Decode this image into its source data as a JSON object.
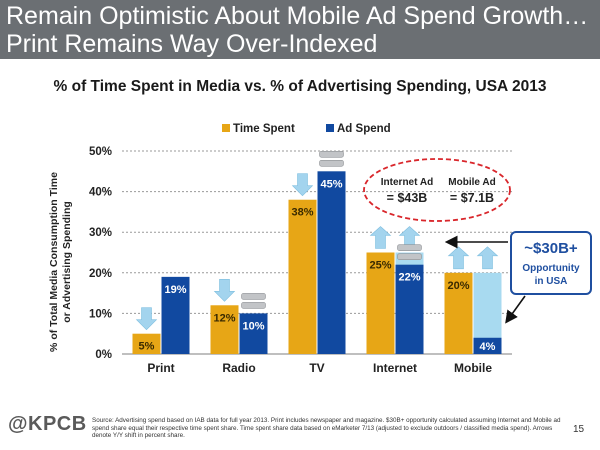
{
  "header": {
    "line1": "Remain Optimistic About Mobile Ad Spend Growth…",
    "line2": "Print Remains Way Over-Indexed"
  },
  "colors": {
    "header_bg": "#6b6f73",
    "time_spent": "#e7a616",
    "ad_spend": "#1149a0",
    "opportunity": "#a8daf0",
    "arrow": "#a3d4ee",
    "annotation_circle": "#d9262b",
    "callout_border": "#1f4fa0",
    "callout_text": "#1f4fa0"
  },
  "chart_data": {
    "type": "bar",
    "title": "% of Time Spent in Media vs. % of Advertising Spending, USA 2013",
    "ylabel": "% of Total Media Consumption Time or Advertising Spending",
    "xlabel": "",
    "categories": [
      "Print",
      "Radio",
      "TV",
      "Internet",
      "Mobile"
    ],
    "series": [
      {
        "name": "Time Spent",
        "values": [
          5,
          12,
          38,
          25,
          20
        ],
        "labels": [
          "5%",
          "12%",
          "38%",
          "25%",
          "20%"
        ]
      },
      {
        "name": "Ad Spend",
        "values": [
          19,
          10,
          45,
          22,
          4
        ],
        "labels": [
          "19%",
          "10%",
          "45%",
          "22%",
          "4%"
        ]
      }
    ],
    "opportunity": {
      "categories": [
        "Internet",
        "Mobile"
      ],
      "values": [
        25,
        20
      ]
    },
    "ylim": [
      0,
      50
    ],
    "yticks": [
      0,
      10,
      20,
      30,
      40,
      50
    ],
    "ytick_labels": [
      "0%",
      "10%",
      "20%",
      "30%",
      "40%",
      "50%"
    ],
    "grid": true,
    "legend_position": "top",
    "arrows": {
      "up": [
        [
          "Internet",
          0
        ],
        [
          "Internet",
          1
        ],
        [
          "Mobile",
          0
        ],
        [
          "Mobile",
          1
        ]
      ],
      "down": [
        [
          "Print",
          0
        ],
        [
          "Radio",
          0
        ],
        [
          "TV",
          0
        ]
      ],
      "flat": [
        [
          "Radio",
          1
        ],
        [
          "TV",
          1
        ],
        [
          "Internet",
          1
        ]
      ]
    },
    "annotations": {
      "internet_ad_label": "Internet Ad",
      "internet_ad_value": "= $43B",
      "mobile_ad_label": "Mobile Ad",
      "mobile_ad_value": "= $7.1B",
      "opportunity_value": "~$30B+",
      "opportunity_text_1": "Opportunity",
      "opportunity_text_2": "in USA"
    }
  },
  "footer": {
    "logo": "@KPCB",
    "source": "Source: Advertising spend based on IAB data for full year 2013. Print includes newspaper and magazine. $30B+ opportunity calculated assuming Internet and Mobile ad spend share equal their respective time spent share. Time spent share data based on eMarketer 7/13 (adjusted to exclude outdoors / classified media spend). Arrows denote Y/Y shift in percent share.",
    "page_number": "15"
  }
}
